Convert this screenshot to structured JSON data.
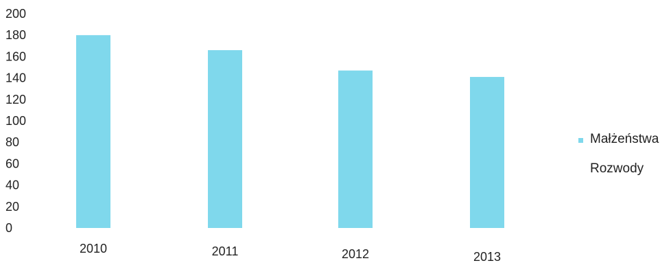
{
  "chart_data": {
    "type": "bar",
    "categories": [
      "2010",
      "2011",
      "2012",
      "2013"
    ],
    "series": [
      {
        "name": "Małżeństwa",
        "values": [
          180,
          166,
          147,
          141
        ],
        "color": "#7fd8ec"
      },
      {
        "name": "Rozwody",
        "values": [
          0,
          0,
          0,
          0
        ],
        "color": "#ffffff"
      }
    ],
    "ylim": [
      0,
      200
    ],
    "yticks": [
      "0",
      "20",
      "40",
      "60",
      "80",
      "100",
      "120",
      "140",
      "160",
      "180",
      "200"
    ],
    "grid": false,
    "legend_position": "right"
  }
}
